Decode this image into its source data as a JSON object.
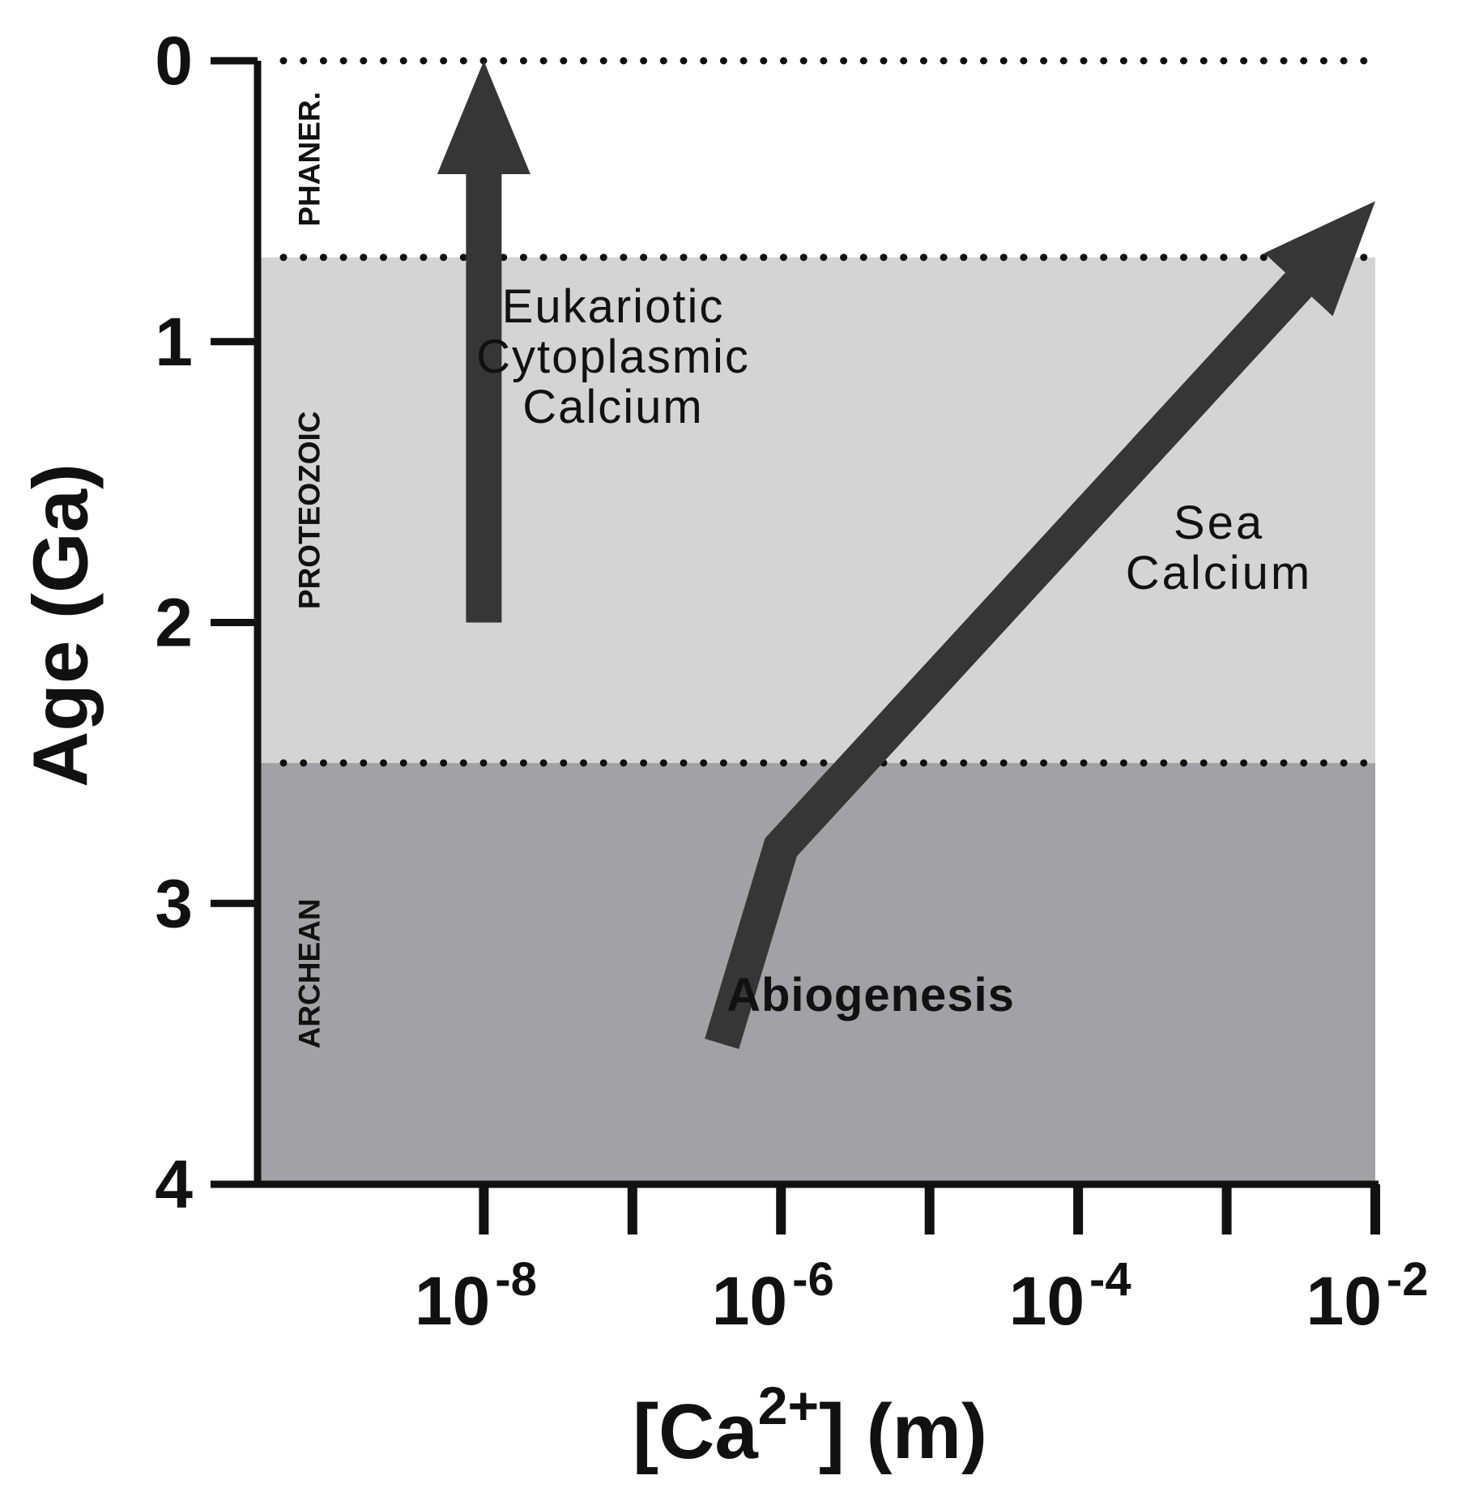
{
  "chart_data": {
    "type": "line",
    "title": "",
    "xlabel": {
      "main": "[Ca",
      "sup": "2+",
      "rest": "]  (m)"
    },
    "ylabel": "Age (Ga)",
    "x_scale": "log",
    "xlim": [
      3e-10,
      0.01
    ],
    "ylim": [
      0,
      4
    ],
    "y_inverted": true,
    "y_ticks": [
      "0",
      "1",
      "2",
      "3",
      "4"
    ],
    "x_tick_values": [
      1e-08,
      1e-07,
      1e-06,
      1e-05,
      0.0001,
      0.001,
      0.01
    ],
    "x_tick_labels": [
      {
        "value": 1e-08,
        "base": "10",
        "exp": "-8"
      },
      {
        "value": 1e-06,
        "base": "10",
        "exp": "-6"
      },
      {
        "value": 0.0001,
        "base": "10",
        "exp": "-4"
      },
      {
        "value": 0.01,
        "base": "10",
        "exp": "-2"
      }
    ],
    "eras": [
      {
        "label": "PHANER.",
        "from": 0,
        "to": 0.7,
        "color": "#ffffff"
      },
      {
        "label": "PROTEOZOIC",
        "from": 0.7,
        "to": 2.5,
        "color": "#d4d4d4"
      },
      {
        "label": "ARCHEAN",
        "from": 2.5,
        "to": 4,
        "color": "#a2a1a5"
      }
    ],
    "boundary_lines": [
      0,
      0.7,
      2.5
    ],
    "series": [
      {
        "name": "Eukariotic Cytoplasmic Calcium",
        "points": [
          {
            "x": 1e-08,
            "y": 2.0
          },
          {
            "x": 1e-08,
            "y": 0.0
          }
        ]
      },
      {
        "name": "Sea Calcium",
        "points": [
          {
            "x": 4e-07,
            "y": 3.5
          },
          {
            "x": 1e-06,
            "y": 2.8
          },
          {
            "x": 0.01,
            "y": 0.5
          }
        ]
      }
    ],
    "annotations": [
      {
        "lines": [
          "Eukariotic",
          "Cytoplasmic",
          "Calcium"
        ]
      },
      {
        "lines": [
          "Sea",
          "Calcium"
        ]
      },
      {
        "lines": [
          "Abiogenesis"
        ]
      }
    ],
    "arrow_color": "#363636",
    "grid": false
  }
}
